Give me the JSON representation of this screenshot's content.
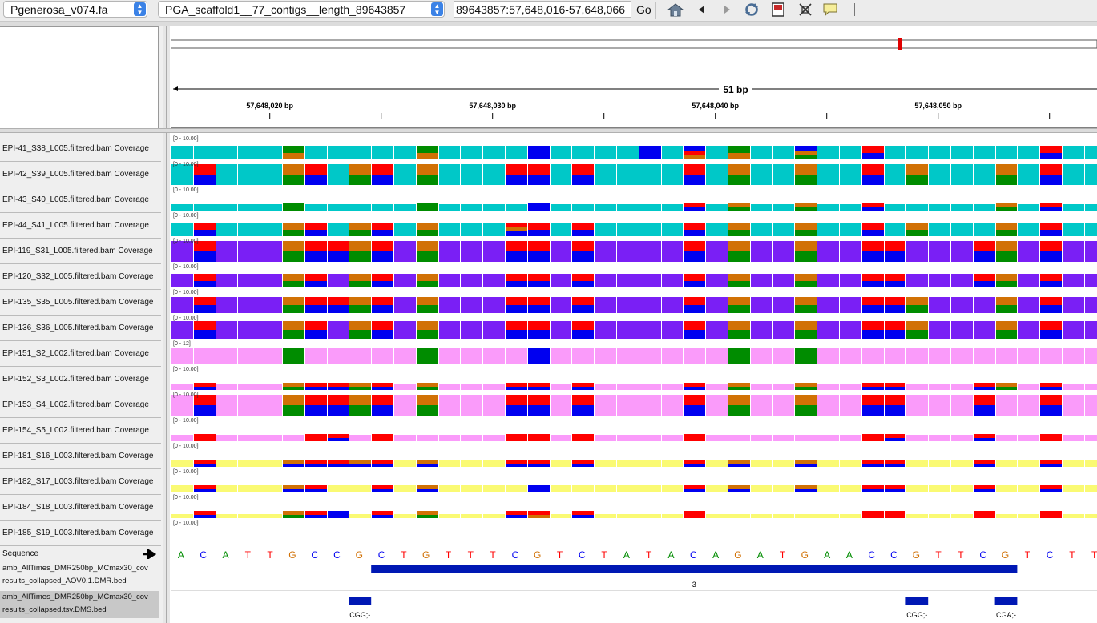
{
  "toolbar": {
    "genome": "Pgenerosa_v074.fa",
    "chromosome": "PGA_scaffold1__77_contigs__length_89643857",
    "locus": "89643857:57,648,016-57,648,066",
    "go_label": "Go"
  },
  "ruler": {
    "span_label": "51 bp",
    "ticks": [
      {
        "label": "57,648,020 bp",
        "pos": 57648020
      },
      {
        "label": "57,648,030 bp",
        "pos": 57648030
      },
      {
        "label": "57,648,040 bp",
        "pos": 57648040
      },
      {
        "label": "57,648,050 bp",
        "pos": 57648050
      }
    ],
    "view_start": 57648016
  },
  "colors": {
    "A": "#008c00",
    "C": "#0000f0",
    "G": "#d17105",
    "T": "#ff0000",
    "teal": "#00c8c8",
    "purple": "#7a1ff5",
    "pink": "#fa9bfa",
    "yellow": "#fafa73",
    "feature": "#0018b4"
  },
  "tracks": [
    {
      "name": "EPI-41_S38_L005.filtered.bam Coverage",
      "range": "[0 - 10.00]",
      "color": "teal",
      "base_h": 0.65,
      "highlights": [
        [
          5,
          "AG"
        ],
        [
          11,
          "AG"
        ],
        [
          16,
          "C"
        ],
        [
          21,
          "C"
        ],
        [
          23,
          "CTG"
        ],
        [
          25,
          "AG"
        ],
        [
          28,
          "CGA"
        ],
        [
          31,
          "TC"
        ],
        [
          39,
          "TC"
        ]
      ]
    },
    {
      "name": "EPI-42_S39_L005.filtered.bam Coverage",
      "range": "[0 - 10.00]",
      "color": "teal",
      "base_h": 1.0,
      "highlights": [
        [
          1,
          "TC"
        ],
        [
          5,
          "GA"
        ],
        [
          6,
          "TC"
        ],
        [
          8,
          "GA"
        ],
        [
          9,
          "TC"
        ],
        [
          11,
          "GA"
        ],
        [
          15,
          "TC"
        ],
        [
          16,
          "TC"
        ],
        [
          18,
          "TC"
        ],
        [
          23,
          "TC"
        ],
        [
          25,
          "GA"
        ],
        [
          28,
          "GA"
        ],
        [
          31,
          "TC"
        ],
        [
          33,
          "GA"
        ],
        [
          37,
          "GA"
        ],
        [
          39,
          "TC"
        ]
      ]
    },
    {
      "name": "EPI-43_S40_L005.filtered.bam Coverage",
      "range": "[0 - 10.00]",
      "color": "teal",
      "base_h": 0.3,
      "highlights": [
        [
          5,
          "A"
        ],
        [
          11,
          "A"
        ],
        [
          16,
          "C"
        ],
        [
          23,
          "TC"
        ],
        [
          25,
          "GA"
        ],
        [
          28,
          "GA"
        ],
        [
          31,
          "TC"
        ],
        [
          37,
          "GA"
        ],
        [
          39,
          "TC"
        ]
      ]
    },
    {
      "name": "EPI-44_S41_L005.filtered.bam Coverage",
      "range": "[0 - 10.00]",
      "color": "teal",
      "base_h": 0.6,
      "highlights": [
        [
          1,
          "TC"
        ],
        [
          5,
          "GA"
        ],
        [
          6,
          "TC"
        ],
        [
          8,
          "GA"
        ],
        [
          9,
          "TC"
        ],
        [
          11,
          "GA"
        ],
        [
          15,
          "TGC"
        ],
        [
          16,
          "TC"
        ],
        [
          18,
          "TC"
        ],
        [
          23,
          "TC"
        ],
        [
          25,
          "GA"
        ],
        [
          28,
          "GA"
        ],
        [
          31,
          "TC"
        ],
        [
          33,
          "GA"
        ],
        [
          37,
          "GA"
        ],
        [
          39,
          "TC"
        ]
      ]
    },
    {
      "name": "EPI-119_S31_L005.filtered.bam Coverage",
      "range": "[0 - 10.00]",
      "color": "purple",
      "base_h": 1.0,
      "highlights": [
        [
          1,
          "TC"
        ],
        [
          5,
          "GA"
        ],
        [
          6,
          "TC"
        ],
        [
          7,
          "TC"
        ],
        [
          8,
          "GA"
        ],
        [
          9,
          "TC"
        ],
        [
          11,
          "GA"
        ],
        [
          15,
          "TC"
        ],
        [
          16,
          "TC"
        ],
        [
          18,
          "TC"
        ],
        [
          23,
          "TC"
        ],
        [
          25,
          "GA"
        ],
        [
          28,
          "GA"
        ],
        [
          31,
          "TC"
        ],
        [
          32,
          "TC"
        ],
        [
          36,
          "TC"
        ],
        [
          37,
          "GA"
        ],
        [
          39,
          "TC"
        ]
      ]
    },
    {
      "name": "EPI-120_S32_L005.filtered.bam Coverage",
      "range": "[0 - 10.00]",
      "color": "purple",
      "base_h": 0.65,
      "highlights": [
        [
          1,
          "TC"
        ],
        [
          5,
          "GA"
        ],
        [
          6,
          "TC"
        ],
        [
          8,
          "GA"
        ],
        [
          9,
          "TC"
        ],
        [
          11,
          "GA"
        ],
        [
          15,
          "TC"
        ],
        [
          16,
          "TC"
        ],
        [
          18,
          "TC"
        ],
        [
          23,
          "TC"
        ],
        [
          25,
          "GA"
        ],
        [
          28,
          "GA"
        ],
        [
          31,
          "TC"
        ],
        [
          32,
          "TC"
        ],
        [
          36,
          "TC"
        ],
        [
          37,
          "GA"
        ],
        [
          39,
          "TC"
        ]
      ]
    },
    {
      "name": "EPI-135_S35_L005.filtered.bam Coverage",
      "range": "[0 - 10.00]",
      "color": "purple",
      "base_h": 0.75,
      "highlights": [
        [
          1,
          "TC"
        ],
        [
          5,
          "GA"
        ],
        [
          6,
          "TC"
        ],
        [
          7,
          "TC"
        ],
        [
          8,
          "GA"
        ],
        [
          9,
          "TC"
        ],
        [
          11,
          "GA"
        ],
        [
          15,
          "TC"
        ],
        [
          16,
          "TC"
        ],
        [
          18,
          "TC"
        ],
        [
          23,
          "TC"
        ],
        [
          25,
          "GA"
        ],
        [
          28,
          "GA"
        ],
        [
          31,
          "TC"
        ],
        [
          32,
          "TC"
        ],
        [
          33,
          "GA"
        ],
        [
          37,
          "GA"
        ],
        [
          39,
          "TC"
        ]
      ]
    },
    {
      "name": "EPI-136_S36_L005.filtered.bam Coverage",
      "range": "[0 - 10.00]",
      "color": "purple",
      "base_h": 0.85,
      "highlights": [
        [
          1,
          "TC"
        ],
        [
          5,
          "GA"
        ],
        [
          6,
          "TC"
        ],
        [
          8,
          "GA"
        ],
        [
          9,
          "TC"
        ],
        [
          11,
          "GA"
        ],
        [
          15,
          "TC"
        ],
        [
          16,
          "TC"
        ],
        [
          18,
          "TC"
        ],
        [
          23,
          "TC"
        ],
        [
          25,
          "GA"
        ],
        [
          28,
          "GA"
        ],
        [
          31,
          "TC"
        ],
        [
          32,
          "TC"
        ],
        [
          33,
          "GA"
        ],
        [
          37,
          "GA"
        ],
        [
          39,
          "TC"
        ]
      ]
    },
    {
      "name": "EPI-151_S2_L002.filtered.bam Coverage",
      "range": "[0 - 12]",
      "color": "pink",
      "base_h": 0.75,
      "highlights": [
        [
          5,
          "A"
        ],
        [
          11,
          "A"
        ],
        [
          16,
          "C"
        ],
        [
          25,
          "A"
        ],
        [
          28,
          "A"
        ]
      ]
    },
    {
      "name": "EPI-152_S3_L002.filtered.bam Coverage",
      "range": "[0 - 10.00]",
      "color": "pink",
      "base_h": 0.3,
      "highlights": [
        [
          1,
          "TC"
        ],
        [
          5,
          "GA"
        ],
        [
          6,
          "TC"
        ],
        [
          7,
          "TC"
        ],
        [
          8,
          "GA"
        ],
        [
          9,
          "TC"
        ],
        [
          11,
          "GA"
        ],
        [
          15,
          "TC"
        ],
        [
          16,
          "TC"
        ],
        [
          18,
          "TC"
        ],
        [
          23,
          "TC"
        ],
        [
          25,
          "GA"
        ],
        [
          28,
          "GA"
        ],
        [
          31,
          "TC"
        ],
        [
          32,
          "TC"
        ],
        [
          36,
          "TC"
        ],
        [
          37,
          "GA"
        ],
        [
          39,
          "TC"
        ]
      ]
    },
    {
      "name": "EPI-153_S4_L002.filtered.bam Coverage",
      "range": "[0 - 10.00]",
      "color": "pink",
      "base_h": 1.0,
      "highlights": [
        [
          1,
          "TC"
        ],
        [
          5,
          "GA"
        ],
        [
          6,
          "TC"
        ],
        [
          7,
          "TC"
        ],
        [
          8,
          "GA"
        ],
        [
          9,
          "TC"
        ],
        [
          11,
          "GA"
        ],
        [
          15,
          "TC"
        ],
        [
          16,
          "TC"
        ],
        [
          18,
          "TC"
        ],
        [
          23,
          "TC"
        ],
        [
          25,
          "GA"
        ],
        [
          28,
          "GA"
        ],
        [
          31,
          "TC"
        ],
        [
          32,
          "TC"
        ],
        [
          36,
          "TC"
        ],
        [
          39,
          "TC"
        ]
      ]
    },
    {
      "name": "EPI-154_S5_L002.filtered.bam Coverage",
      "range": "[0 - 10.00]",
      "color": "pink",
      "base_h": 0.3,
      "highlights": [
        [
          1,
          "T"
        ],
        [
          6,
          "T"
        ],
        [
          7,
          "TC"
        ],
        [
          9,
          "T"
        ],
        [
          15,
          "T"
        ],
        [
          16,
          "T"
        ],
        [
          18,
          "T"
        ],
        [
          23,
          "T"
        ],
        [
          31,
          "T"
        ],
        [
          32,
          "TC"
        ],
        [
          36,
          "TC"
        ],
        [
          39,
          "T"
        ]
      ]
    },
    {
      "name": "EPI-181_S16_L003.filtered.bam Coverage",
      "range": "[0 - 10.00]",
      "color": "yellow",
      "base_h": 0.3,
      "highlights": [
        [
          1,
          "TC"
        ],
        [
          5,
          "GC"
        ],
        [
          6,
          "TC"
        ],
        [
          7,
          "TC"
        ],
        [
          8,
          "GC"
        ],
        [
          9,
          "TC"
        ],
        [
          11,
          "GC"
        ],
        [
          15,
          "TC"
        ],
        [
          16,
          "TC"
        ],
        [
          18,
          "TC"
        ],
        [
          23,
          "TC"
        ],
        [
          25,
          "GC"
        ],
        [
          28,
          "GC"
        ],
        [
          31,
          "TC"
        ],
        [
          32,
          "TC"
        ],
        [
          36,
          "TC"
        ],
        [
          39,
          "TC"
        ]
      ]
    },
    {
      "name": "EPI-182_S17_L003.filtered.bam Coverage",
      "range": "[0 - 10.00]",
      "color": "yellow",
      "base_h": 0.35,
      "highlights": [
        [
          1,
          "TC"
        ],
        [
          5,
          "GC"
        ],
        [
          6,
          "TC"
        ],
        [
          9,
          "TC"
        ],
        [
          11,
          "GC"
        ],
        [
          16,
          "C"
        ],
        [
          23,
          "TC"
        ],
        [
          25,
          "GC"
        ],
        [
          28,
          "GC"
        ],
        [
          31,
          "TC"
        ],
        [
          32,
          "TC"
        ],
        [
          36,
          "TC"
        ],
        [
          39,
          "TC"
        ]
      ]
    },
    {
      "name": "EPI-184_S18_L003.filtered.bam Coverage",
      "range": "[0 - 10.00]",
      "color": "yellow",
      "base_h": 0.2,
      "highlights": [
        [
          1,
          "TC"
        ],
        [
          5,
          "GA"
        ],
        [
          6,
          "TC"
        ],
        [
          7,
          "C"
        ],
        [
          9,
          "TC"
        ],
        [
          11,
          "GA"
        ],
        [
          15,
          "TC"
        ],
        [
          16,
          "TG"
        ],
        [
          18,
          "TC"
        ],
        [
          23,
          "T"
        ],
        [
          31,
          "T"
        ],
        [
          32,
          "T"
        ],
        [
          36,
          "T"
        ],
        [
          39,
          "T"
        ]
      ]
    },
    {
      "name": "EPI-185_S19_L003.filtered.bam Coverage",
      "range": "[0 - 10.00]",
      "color": "yellow",
      "base_h": 0.0,
      "highlights": []
    }
  ],
  "sequence": {
    "label": "Sequence",
    "bases": "ACATTGCCGCTGTTTCGTCTATACAGATGAACCGTTCGTCTT"
  },
  "features": [
    {
      "name_line1": "amb_AllTimes_DMR250bp_MCmax30_cov",
      "name_line2": "results_collapsed_AOV0.1.DMR.bed",
      "label": "3",
      "start": 9,
      "end": 38,
      "label_pos": 23.5
    },
    {
      "name_line1": "amb_AllTimes_DMR250bp_MCmax30_cov",
      "name_line2": "results_collapsed.tsv.DMS.bed",
      "items": [
        {
          "label": "CGG;-",
          "start": 8,
          "end": 9
        },
        {
          "label": "CGG;-",
          "start": 33,
          "end": 34
        },
        {
          "label": "CGA;-",
          "start": 37,
          "end": 38
        }
      ]
    }
  ]
}
